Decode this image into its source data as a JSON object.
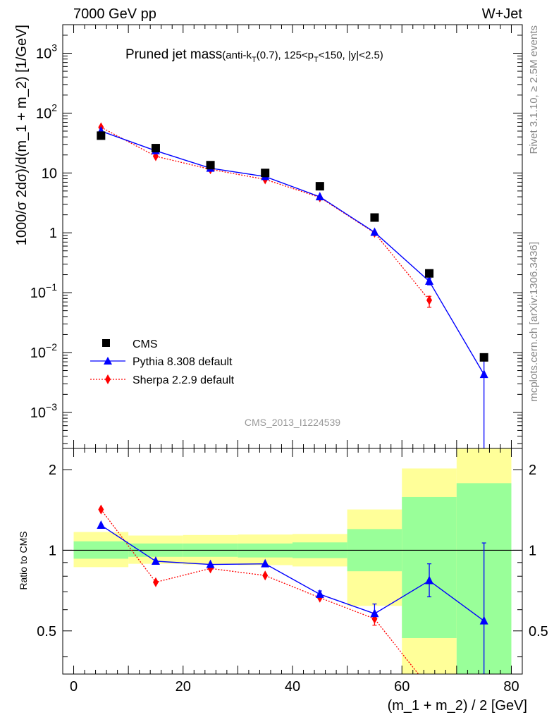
{
  "header": {
    "left": "7000 GeV pp",
    "right": "W+Jet"
  },
  "side_labels": {
    "rivet": "Rivet 3.1.10, ≥ 2.5M events",
    "mcplots": "mcplots.cern.ch [arXiv:1306.3436]"
  },
  "chart_data": [
    {
      "type": "scatter",
      "panel": "main",
      "title": "Pruned jet mass",
      "title_suffix_parts": [
        "(anti-k",
        "T",
        "(0.7), 125<p",
        "T",
        "<150, |y|<2.5)"
      ],
      "watermark": "CMS_2013_I1224539",
      "ylabel": "1000/σ 2dσ)/d(m_1 + m_2) [1/GeV]",
      "yscale": "log",
      "ylim": [
        0.00025,
        3000
      ],
      "xlim": [
        -2,
        82
      ],
      "grid": false,
      "legend_position": "bottom-left",
      "yticks": [
        {
          "v": 1000,
          "base": "10",
          "exp": "3"
        },
        {
          "v": 100,
          "base": "10",
          "exp": "2"
        },
        {
          "v": 10,
          "base": "10",
          "exp": ""
        },
        {
          "v": 1,
          "base": "1",
          "exp": ""
        },
        {
          "v": 0.1,
          "base": "10",
          "exp": "−1"
        },
        {
          "v": 0.01,
          "base": "10",
          "exp": "−2"
        },
        {
          "v": 0.001,
          "base": "10",
          "exp": "−3"
        }
      ],
      "series": [
        {
          "name": "CMS",
          "color": "#000000",
          "marker": "square",
          "x": [
            5,
            15,
            25,
            35,
            45,
            55,
            65,
            75
          ],
          "y": [
            42,
            26,
            13.5,
            10,
            6.0,
            1.8,
            0.21,
            0.0083
          ]
        },
        {
          "name": "Pythia 8.308 default",
          "color": "#0000ff",
          "marker": "triangle",
          "line": "solid",
          "x": [
            5,
            15,
            25,
            35,
            45,
            55,
            65,
            75
          ],
          "y": [
            50,
            23.5,
            12,
            8.7,
            4.0,
            1.02,
            0.155,
            0.0043
          ],
          "yerr_lo": [
            0,
            0,
            0,
            0,
            0,
            0,
            0.02,
            0.00415
          ],
          "yerr_hi": [
            0,
            0,
            0,
            0,
            0,
            0,
            0.02,
            0.004
          ]
        },
        {
          "name": "Sherpa 2.2.9 default",
          "color": "#ff0000",
          "marker": "diamond",
          "line": "dotted",
          "x": [
            5,
            15,
            25,
            35,
            45,
            55,
            65
          ],
          "y": [
            58,
            19,
            11.5,
            7.8,
            3.9,
            1.0,
            0.075
          ],
          "yerr_lo": [
            0,
            0,
            0,
            0,
            0,
            0,
            0.018
          ],
          "yerr_hi": [
            0,
            0,
            0,
            0,
            0,
            0,
            0.012
          ]
        }
      ]
    },
    {
      "type": "line",
      "panel": "ratio",
      "ylabel": "Ratio to CMS",
      "xlabel": "(m_1 + m_2) / 2 [GeV]",
      "yscale": "log",
      "ylim": [
        0.345,
        2.4
      ],
      "xlim": [
        -2,
        82
      ],
      "xticks": [
        0,
        20,
        40,
        60,
        80
      ],
      "yticks": [
        0.5,
        1,
        2
      ],
      "reference": 1,
      "bands": [
        {
          "x0": 0,
          "x1": 10,
          "yellow": [
            0.865,
            1.17
          ],
          "green": [
            0.93,
            1.08
          ]
        },
        {
          "x0": 10,
          "x1": 20,
          "yellow": [
            0.89,
            1.135
          ],
          "green": [
            0.945,
            1.06
          ]
        },
        {
          "x0": 20,
          "x1": 30,
          "yellow": [
            0.885,
            1.14
          ],
          "green": [
            0.945,
            1.06
          ]
        },
        {
          "x0": 30,
          "x1": 40,
          "yellow": [
            0.88,
            1.145
          ],
          "green": [
            0.94,
            1.06
          ]
        },
        {
          "x0": 40,
          "x1": 50,
          "yellow": [
            0.87,
            1.15
          ],
          "green": [
            0.935,
            1.07
          ]
        },
        {
          "x0": 50,
          "x1": 60,
          "yellow": [
            0.62,
            1.42
          ],
          "green": [
            0.835,
            1.2
          ]
        },
        {
          "x0": 60,
          "x1": 70,
          "yellow": [
            0.345,
            2.02
          ],
          "green": [
            0.47,
            1.58
          ]
        },
        {
          "x0": 70,
          "x1": 80,
          "yellow": [
            0.345,
            2.4
          ],
          "green": [
            0.345,
            1.78
          ]
        }
      ],
      "series": [
        {
          "name": "Pythia 8.308 default",
          "color": "#0000ff",
          "x": [
            5,
            15,
            25,
            35,
            45,
            55,
            65,
            75
          ],
          "y": [
            1.24,
            0.91,
            0.885,
            0.89,
            0.685,
            0.58,
            0.77,
            0.545
          ],
          "yerr_lo": [
            0,
            0,
            0,
            0,
            0.02,
            0.03,
            0.1,
            0.2
          ],
          "yerr_hi": [
            0,
            0,
            0,
            0,
            0.02,
            0.05,
            0.12,
            0.52
          ]
        },
        {
          "name": "Sherpa 2.2.9 default",
          "color": "#ff0000",
          "x": [
            5,
            15,
            25,
            35,
            45,
            55,
            63
          ],
          "y": [
            1.42,
            0.76,
            0.855,
            0.805,
            0.665,
            0.555,
            0.345
          ],
          "marker_mask": [
            1,
            1,
            1,
            1,
            1,
            1,
            0
          ],
          "yerr_lo": [
            0,
            0,
            0,
            0,
            0,
            0.03,
            0
          ],
          "yerr_hi": [
            0,
            0,
            0,
            0,
            0,
            0.03,
            0
          ]
        }
      ]
    }
  ]
}
